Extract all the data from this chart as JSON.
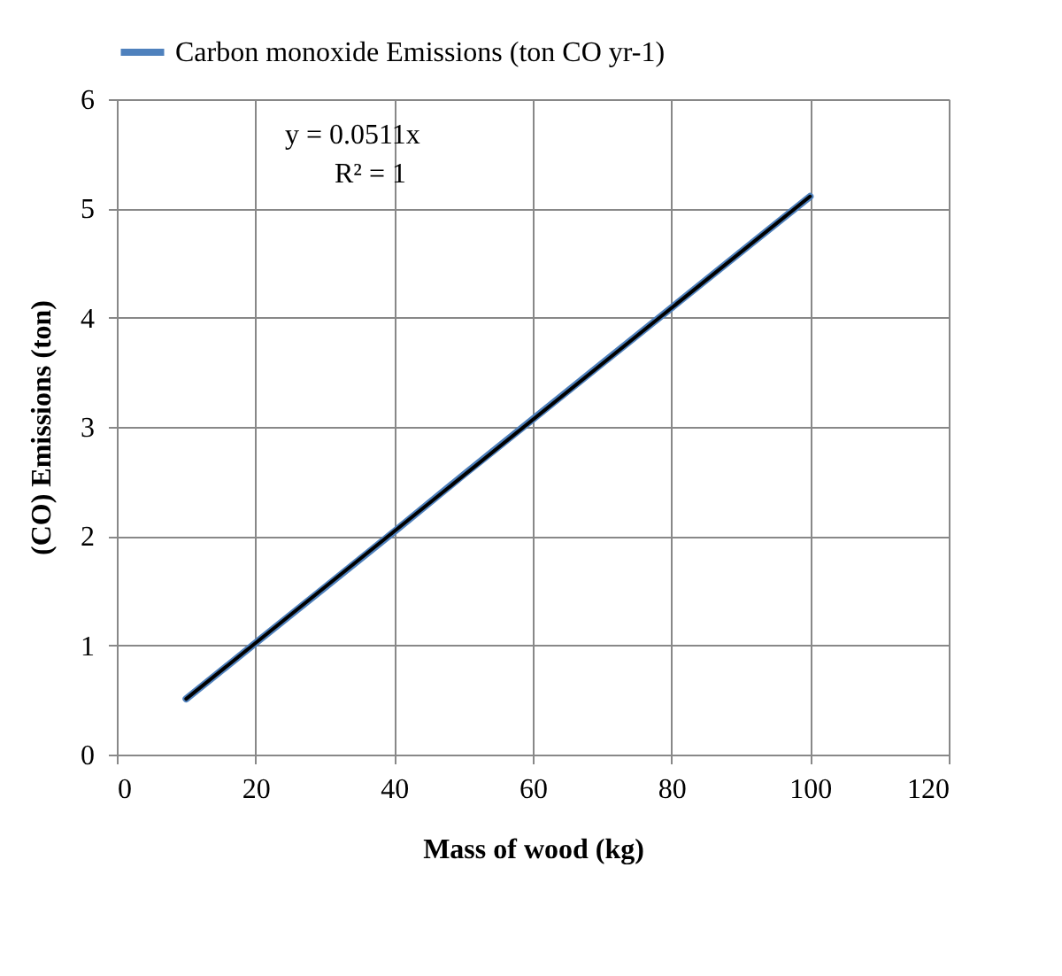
{
  "chart_data": {
    "type": "line",
    "x": [
      10,
      20,
      30,
      40,
      50,
      60,
      70,
      80,
      90,
      100
    ],
    "series": [
      {
        "name": "Carbon monoxide Emissions (ton CO yr-1)",
        "color": "#4f81bd",
        "values": [
          0.51,
          1.02,
          1.53,
          2.04,
          2.56,
          3.07,
          3.58,
          4.09,
          4.6,
          5.11
        ]
      },
      {
        "type": "line",
        "color": "#000000",
        "x": [
          10,
          100
        ],
        "values": [
          0.51,
          5.11
        ]
      }
    ],
    "xlabel": "Mass of wood (kg)",
    "ylabel": "(CO) Emissions (ton)",
    "xlim": [
      0,
      120
    ],
    "xticks": [
      0,
      20,
      40,
      60,
      80,
      100,
      120
    ],
    "ylim": [
      0,
      6
    ],
    "yticks": [
      0,
      1,
      2,
      3,
      4,
      5,
      6
    ],
    "annotations": [
      "y = 0.0511x",
      "R² = 1"
    ],
    "grid": true,
    "legend": "top",
    "marker": "none",
    "line_style": "solid"
  }
}
